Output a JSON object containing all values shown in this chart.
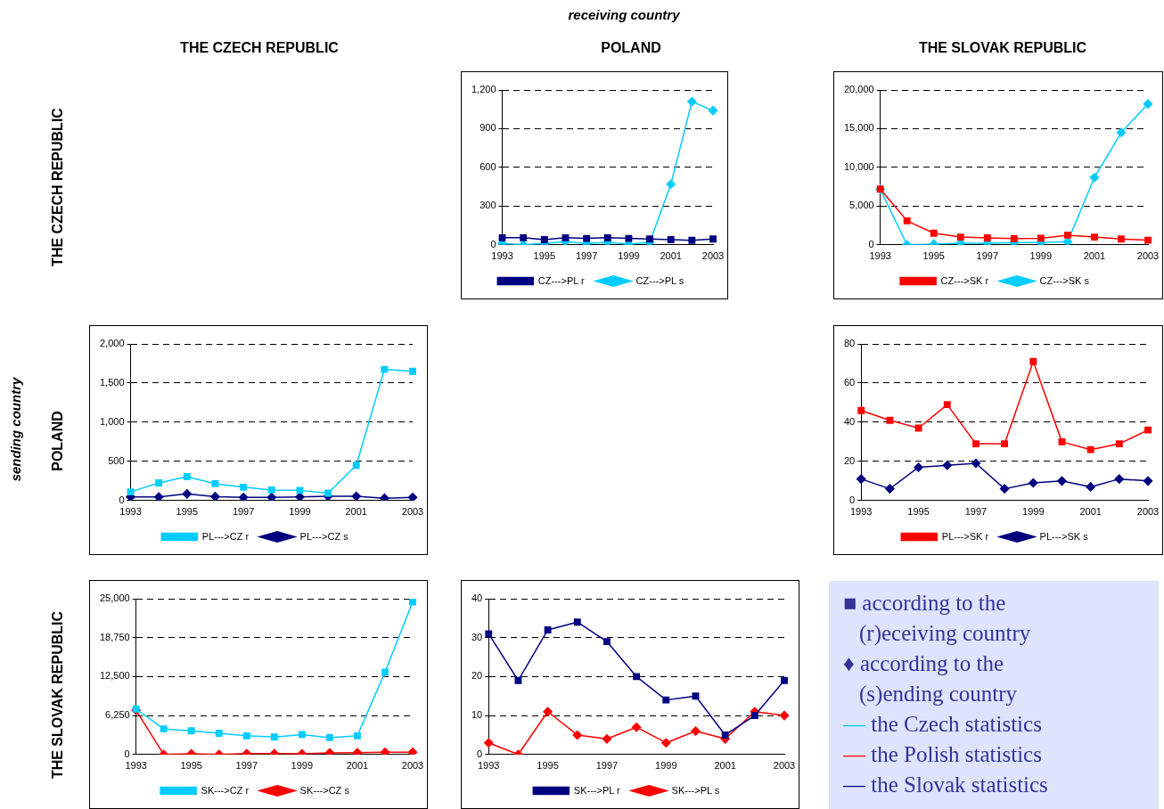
{
  "chart_data": [
    {
      "type": "other",
      "title": "receiving country",
      "ylabel": "sending country",
      "annotations": [
        "THE CZECH REPUBLIC",
        "POLAND",
        "THE SLOVAK REPUBLIC",
        "THE CZECH REPUBLIC",
        "POLAND",
        "THE SLOVAK REPUBLIC"
      ]
    },
    {
      "type": "line",
      "categories": [
        "1993",
        null,
        "1995",
        null,
        "1997",
        null,
        "1999",
        null,
        "2001",
        null,
        "2003"
      ],
      "ylim": [
        0,
        1200
      ],
      "yticks": [
        0,
        300,
        600,
        900,
        {
          "value": 1200,
          "label": "1,200"
        }
      ],
      "grid": "y",
      "legend": "bottom",
      "series": [
        {
          "name": "CZ--->PL r",
          "color": "#000080",
          "marker": "square",
          "values": [
            55,
            55,
            40,
            55,
            50,
            55,
            50,
            45,
            40,
            35,
            45
          ]
        },
        {
          "name": "CZ--->PL s",
          "color": "#00ccff",
          "marker": "diamond",
          "values": [
            10,
            0,
            10,
            25,
            10,
            20,
            5,
            20,
            470,
            1110,
            1040
          ]
        }
      ]
    },
    {
      "type": "line",
      "categories": [
        "1993",
        null,
        "1995",
        null,
        "1997",
        null,
        "1999",
        null,
        "2001",
        null,
        "2003"
      ],
      "ylim": [
        0,
        20000
      ],
      "yticks": [
        0,
        {
          "value": 5000,
          "label": "5,000"
        },
        {
          "value": 10000,
          "label": "10,000"
        },
        {
          "value": 15000,
          "label": "15,000"
        },
        {
          "value": 20000,
          "label": "20,000"
        }
      ],
      "grid": "y",
      "legend": "bottom",
      "series": [
        {
          "name": "CZ--->SK r",
          "color": "#ff0000",
          "marker": "square",
          "values": [
            7200,
            3100,
            1500,
            1000,
            900,
            800,
            850,
            1250,
            1000,
            750,
            600
          ]
        },
        {
          "name": "CZ--->SK s",
          "color": "#00ccff",
          "marker": "diamond",
          "values": [
            7200,
            0,
            100,
            200,
            200,
            300,
            300,
            400,
            8700,
            14500,
            18200
          ]
        }
      ]
    },
    {
      "type": "line",
      "categories": [
        "1993",
        null,
        "1995",
        null,
        "1997",
        null,
        "1999",
        null,
        "2001",
        null,
        "2003"
      ],
      "ylim": [
        0,
        2000
      ],
      "yticks": [
        0,
        500,
        {
          "value": 1000,
          "label": "1,000"
        },
        {
          "value": 1500,
          "label": "1,500"
        },
        {
          "value": 2000,
          "label": "2,000"
        }
      ],
      "grid": "y",
      "legend": "bottom",
      "series": [
        {
          "name": "PL--->CZ r",
          "color": "#00ccff",
          "marker": "square",
          "values": [
            110,
            225,
            305,
            215,
            170,
            135,
            130,
            95,
            450,
            1675,
            1650
          ]
        },
        {
          "name": "PL--->CZ s",
          "color": "#000080",
          "marker": "diamond",
          "values": [
            45,
            45,
            85,
            50,
            40,
            40,
            45,
            55,
            55,
            30,
            40
          ]
        }
      ]
    },
    {
      "type": "line",
      "categories": [
        "1993",
        null,
        "1995",
        null,
        "1997",
        null,
        "1999",
        null,
        "2001",
        null,
        "2003"
      ],
      "ylim": [
        0,
        80
      ],
      "yticks": [
        0,
        20,
        40,
        60,
        80
      ],
      "grid": "y",
      "legend": "bottom",
      "series": [
        {
          "name": "PL--->SK r",
          "color": "#ff0000",
          "marker": "square",
          "values": [
            46,
            41,
            37,
            49,
            29,
            29,
            71,
            30,
            26,
            29,
            36
          ]
        },
        {
          "name": "PL--->SK s",
          "color": "#000080",
          "marker": "diamond",
          "values": [
            11,
            6,
            17,
            18,
            19,
            6,
            9,
            10,
            7,
            11,
            10
          ]
        }
      ]
    },
    {
      "type": "line",
      "categories": [
        "1993",
        null,
        "1995",
        null,
        "1997",
        null,
        "1999",
        null,
        "2001",
        null,
        "2003"
      ],
      "ylim": [
        0,
        25000
      ],
      "yticks": [
        0,
        {
          "value": 6250,
          "label": "6,250"
        },
        {
          "value": 12500,
          "label": "12,500"
        },
        {
          "value": 18750,
          "label": "18,750"
        },
        {
          "value": 25000,
          "label": "25,000"
        }
      ],
      "grid": "y",
      "legend": "bottom",
      "series": [
        {
          "name": "SK--->CZ r",
          "color": "#00ccff",
          "marker": "square",
          "values": [
            7300,
            4100,
            3800,
            3400,
            3000,
            2800,
            3200,
            2700,
            3000,
            13200,
            24500
          ]
        },
        {
          "name": "SK--->CZ s",
          "color": "#ff0000",
          "marker": "diamond",
          "values": [
            7100,
            0,
            100,
            0,
            150,
            150,
            100,
            250,
            300,
            350,
            350
          ]
        }
      ]
    },
    {
      "type": "line",
      "categories": [
        "1993",
        null,
        "1995",
        null,
        "1997",
        null,
        "1999",
        null,
        "2001",
        null,
        "2003"
      ],
      "ylim": [
        0,
        40
      ],
      "yticks": [
        0,
        10,
        20,
        30,
        40
      ],
      "grid": "y",
      "legend": "bottom",
      "series": [
        {
          "name": "SK--->PL r",
          "color": "#000080",
          "marker": "square",
          "values": [
            31,
            19,
            32,
            34,
            29,
            20,
            14,
            15,
            5,
            10,
            19
          ]
        },
        {
          "name": "SK--->PL s",
          "color": "#ff0000",
          "marker": "diamond",
          "values": [
            3,
            0,
            11,
            5,
            4,
            7,
            3,
            6,
            4,
            11,
            10
          ]
        }
      ]
    },
    {
      "type": "other",
      "annotations": [
        "■ according to the",
        "(r)eceiving country",
        "♦ according to the",
        "(s)ending country",
        "— the Czech statistics",
        "— the Polish statistics",
        "— the Slovak statistics"
      ],
      "colors": [
        "#333399",
        null,
        "#333399",
        null,
        "#00ccff",
        "#ff0000",
        "#000080"
      ]
    }
  ]
}
